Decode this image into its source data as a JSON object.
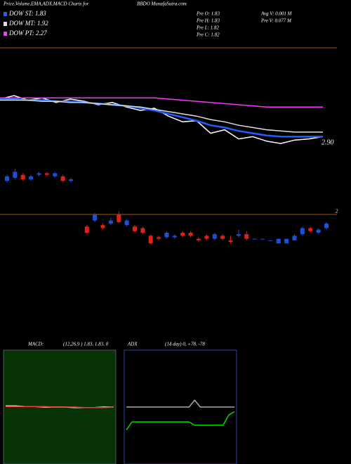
{
  "chart_data": [
    {
      "type": "line",
      "title": "Price,Volume,EMA,ADX,MACD Charts for",
      "subtitle": "BBDO MunafaSutra.com",
      "info": [
        "Pre  O: 1.83",
        "Pre  H: 1.83",
        "Pre  L: 1.82",
        "Pre  C: 1.82",
        "Avg  V: 0.001 M",
        "Pre  V: 0.077 M"
      ],
      "price_label": "2.90",
      "ylim": [
        1.5,
        2.5
      ],
      "series": [
        {
          "color": "#ffffff",
          "values": [
            2.05,
            2.08,
            2.04,
            2.06,
            2.02,
            2.05,
            2.03,
            2.0,
            2.02,
            1.98,
            1.95,
            1.97,
            1.9,
            1.85,
            1.86,
            1.75,
            1.78,
            1.7,
            1.72,
            1.68,
            1.66,
            1.69,
            1.7,
            1.72
          ]
        },
        {
          "name": "DOW ST: 1.83",
          "color": "#1f5fff",
          "values": [
            2.05,
            2.05,
            2.04,
            2.04,
            2.03,
            2.03,
            2.02,
            2.01,
            2.0,
            1.99,
            1.97,
            1.95,
            1.92,
            1.89,
            1.86,
            1.82,
            1.8,
            1.77,
            1.75,
            1.73,
            1.72,
            1.72,
            1.72,
            1.72
          ]
        },
        {
          "name": "DOW MT: 1.92",
          "color": "#dddddd",
          "values": [
            2.04,
            2.04,
            2.04,
            2.03,
            2.03,
            2.02,
            2.02,
            2.01,
            2.0,
            1.99,
            1.98,
            1.96,
            1.94,
            1.92,
            1.9,
            1.87,
            1.85,
            1.82,
            1.8,
            1.78,
            1.77,
            1.76,
            1.76,
            1.76
          ]
        },
        {
          "name": "DOW PT: 2.27",
          "color": "#ff33ff",
          "values": [
            2.06,
            2.06,
            2.06,
            2.06,
            2.06,
            2.06,
            2.06,
            2.06,
            2.06,
            2.06,
            2.06,
            2.06,
            2.05,
            2.04,
            2.03,
            2.02,
            2.01,
            2.0,
            1.99,
            1.98,
            1.98,
            1.98,
            1.98,
            1.98
          ]
        }
      ]
    },
    {
      "type": "candlestick",
      "ylim": [
        1.7,
        2.3
      ],
      "yticks": [
        2
      ],
      "up_color": "#1e4fd8",
      "down_color": "#e0201b",
      "open": [
        2.22,
        2.24,
        2.26,
        2.23,
        2.26,
        2.27,
        2.25,
        2.25,
        2.22,
        null,
        1.92,
        1.96,
        1.93,
        1.94,
        2.0,
        1.93,
        1.92,
        1.91,
        1.86,
        1.85,
        1.85,
        1.85,
        1.88,
        1.88,
        1.84,
        1.86,
        1.84,
        1.86,
        1.83,
        1.86,
        1.87,
        1.84,
        1.84,
        1.83,
        1.81,
        1.81,
        1.83,
        1.87,
        1.91,
        1.88,
        1.91
      ],
      "high": [
        2.26,
        2.3,
        2.27,
        2.26,
        2.28,
        2.28,
        2.28,
        2.26,
        2.24,
        null,
        1.93,
        2.01,
        1.94,
        1.98,
        2.02,
        1.97,
        1.93,
        1.92,
        1.87,
        1.86,
        1.89,
        1.87,
        1.89,
        1.89,
        1.85,
        1.87,
        1.88,
        1.87,
        1.86,
        1.9,
        1.89,
        1.84,
        1.84,
        1.83,
        1.84,
        1.84,
        1.87,
        1.92,
        1.92,
        1.91,
        1.95
      ],
      "low": [
        2.21,
        2.23,
        2.22,
        2.22,
        2.25,
        2.25,
        2.24,
        2.21,
        2.21,
        null,
        1.87,
        1.95,
        1.9,
        1.93,
        1.94,
        1.92,
        1.88,
        1.87,
        1.8,
        1.83,
        1.84,
        1.84,
        1.85,
        1.85,
        1.82,
        1.83,
        1.83,
        1.83,
        1.81,
        1.85,
        1.83,
        1.84,
        1.84,
        1.83,
        1.81,
        1.81,
        1.83,
        1.86,
        1.88,
        1.87,
        1.9
      ],
      "close": [
        2.25,
        2.28,
        2.23,
        2.25,
        2.27,
        2.26,
        2.27,
        2.22,
        2.23,
        null,
        1.88,
        2.0,
        1.91,
        1.96,
        1.95,
        1.96,
        1.89,
        1.88,
        1.81,
        1.84,
        1.88,
        1.86,
        1.86,
        1.86,
        1.83,
        1.84,
        1.87,
        1.84,
        1.82,
        1.87,
        1.84,
        1.84,
        1.84,
        1.83,
        1.84,
        1.84,
        1.86,
        1.91,
        1.89,
        1.9,
        1.94
      ]
    },
    {
      "type": "line",
      "title": "MACD:",
      "subtitle": "(12,26,9 ) 1.83, 1.83, 0",
      "ylim": [
        -1,
        1
      ],
      "series": [
        {
          "color": "#ffffff",
          "values": [
            0.02,
            0.02,
            0.01,
            0.01,
            0,
            0,
            0,
            -0.01,
            -0.01,
            -0.01,
            0,
            0
          ]
        },
        {
          "color": "#ff3333",
          "values": [
            0.01,
            0.01,
            0.01,
            0.01,
            0.01,
            0,
            0,
            0,
            -0.01,
            -0.01,
            -0.01,
            0
          ]
        }
      ]
    },
    {
      "type": "line",
      "title": "ADX",
      "subtitle": "(14 day) 0, +78, -78",
      "ylim": [
        0,
        100
      ],
      "series": [
        {
          "color": "#aaaaaa",
          "values": [
            50,
            50,
            50,
            50,
            50,
            50,
            50,
            50,
            50,
            50,
            50,
            50,
            56,
            50,
            50,
            50,
            50,
            50,
            50,
            50
          ]
        },
        {
          "color": "#00dd00",
          "values": [
            30,
            37,
            37,
            37,
            37,
            37,
            37,
            37,
            37,
            37,
            37,
            37,
            34,
            34,
            34,
            34,
            34,
            34,
            43,
            46
          ]
        }
      ]
    }
  ]
}
